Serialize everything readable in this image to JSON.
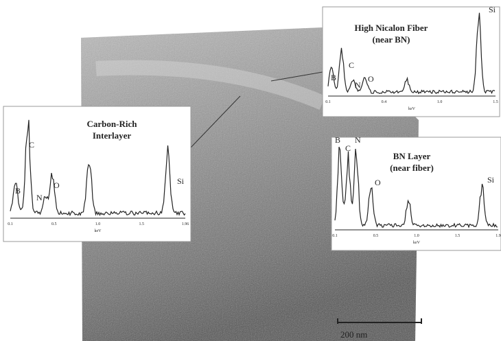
{
  "micrograph": {
    "scale_bar": "200 nm"
  },
  "insets": [
    {
      "title_lines": [
        "Carbon-Rich",
        "Interlayer"
      ],
      "peak_labels": [
        "B",
        "C",
        "N",
        "O",
        "Si"
      ],
      "ticks": [
        "0.1",
        "0.5",
        "1.0",
        "1.5",
        "1.96"
      ],
      "axis_label": "keV"
    },
    {
      "title_lines": [
        "High Nicalon Fiber",
        "(near BN)"
      ],
      "peak_labels": [
        "B",
        "C",
        "N",
        "O",
        "Si"
      ],
      "ticks": [
        "0.1",
        "0.4",
        "1.0",
        "1.5"
      ],
      "axis_label": "keV"
    },
    {
      "title_lines": [
        "BN Layer",
        "(near fiber)"
      ],
      "peak_labels": [
        "B",
        "C",
        "N",
        "O",
        "Si"
      ],
      "ticks": [
        "0.1",
        "0.5",
        "1.0",
        "1.5",
        "1.9"
      ],
      "axis_label": "keV"
    }
  ]
}
